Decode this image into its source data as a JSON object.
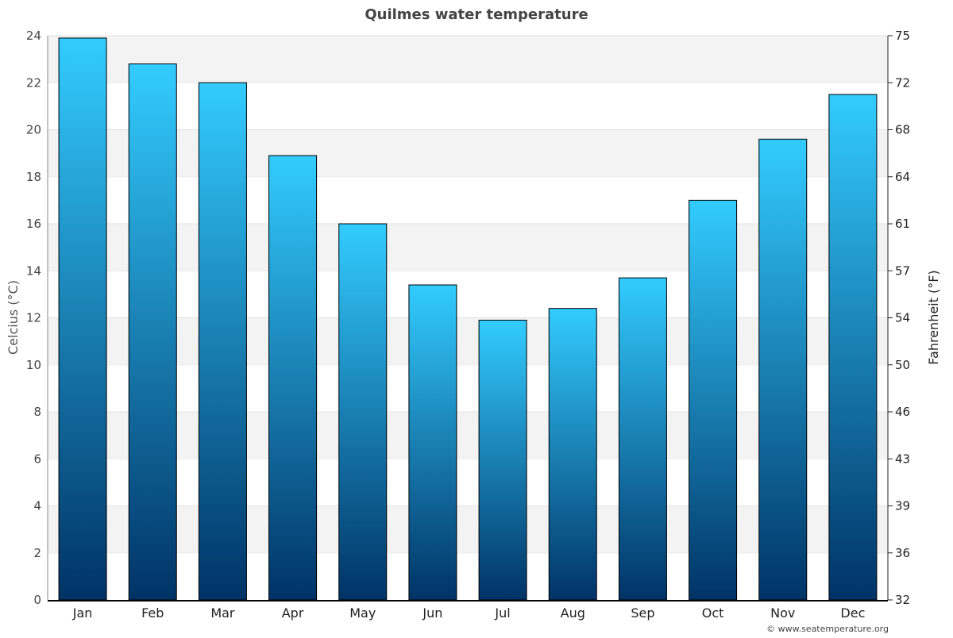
{
  "chart_data": {
    "type": "bar",
    "title": "Quilmes water temperature",
    "ylabel": "Celcius (°C)",
    "y2label": "Fahrenheit (°F)",
    "categories": [
      "Jan",
      "Feb",
      "Mar",
      "Apr",
      "May",
      "Jun",
      "Jul",
      "Aug",
      "Sep",
      "Oct",
      "Nov",
      "Dec"
    ],
    "values": [
      23.9,
      22.8,
      22.0,
      18.9,
      16.0,
      13.4,
      11.9,
      12.4,
      13.7,
      17.0,
      19.6,
      21.5
    ],
    "ylim": [
      0,
      24
    ],
    "yticks": [
      "0",
      "2",
      "4",
      "6",
      "8",
      "10",
      "12",
      "14",
      "16",
      "18",
      "20",
      "22",
      "24"
    ],
    "y2ticks": [
      "32",
      "36",
      "39",
      "43",
      "46",
      "50",
      "54",
      "57",
      "61",
      "64",
      "68",
      "72",
      "75"
    ],
    "grid": true,
    "colors": {
      "bar_top": "#33ccff",
      "bar_bottom": "#003366",
      "band": "#f3f3f3"
    }
  },
  "credit": "© www.seatemperature.org"
}
